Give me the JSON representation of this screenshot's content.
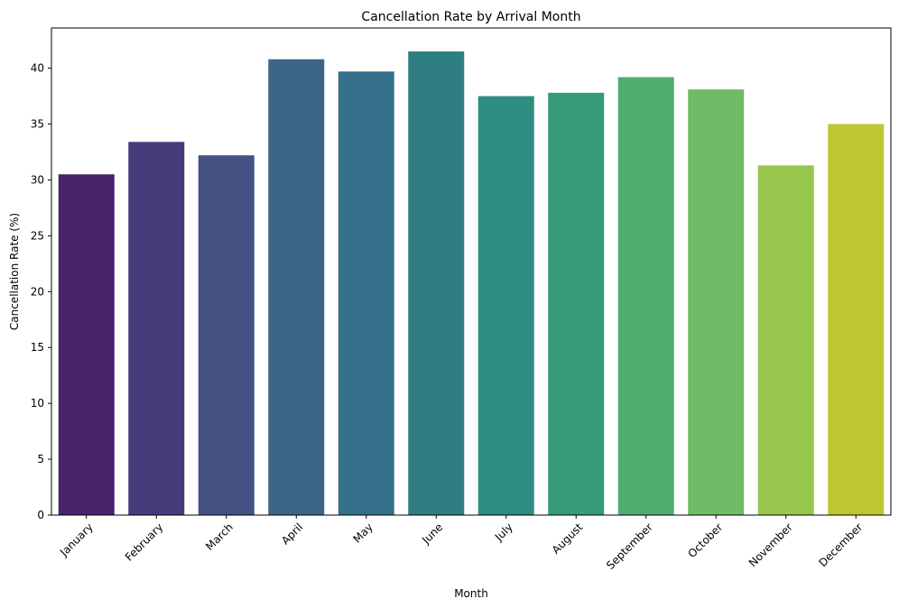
{
  "chart_data": {
    "type": "bar",
    "title": "Cancellation Rate by Arrival Month",
    "xlabel": "Month",
    "ylabel": "Cancellation Rate (%)",
    "categories": [
      "January",
      "February",
      "March",
      "April",
      "May",
      "June",
      "July",
      "August",
      "September",
      "October",
      "November",
      "December"
    ],
    "values": [
      30.5,
      33.4,
      32.2,
      40.8,
      39.7,
      41.5,
      37.5,
      37.8,
      39.2,
      38.1,
      31.3,
      35.0
    ],
    "colors": [
      "#472368",
      "#463a79",
      "#435183",
      "#3c6487",
      "#35718a",
      "#2f7f82",
      "#2d8d80",
      "#379a7b",
      "#4fad6f",
      "#70bb65",
      "#96c64b",
      "#bcc731"
    ],
    "ylim": [
      0,
      43.6
    ],
    "yticks": [
      0,
      5,
      10,
      15,
      20,
      25,
      30,
      35,
      40
    ],
    "grid": false,
    "legend": "none"
  }
}
